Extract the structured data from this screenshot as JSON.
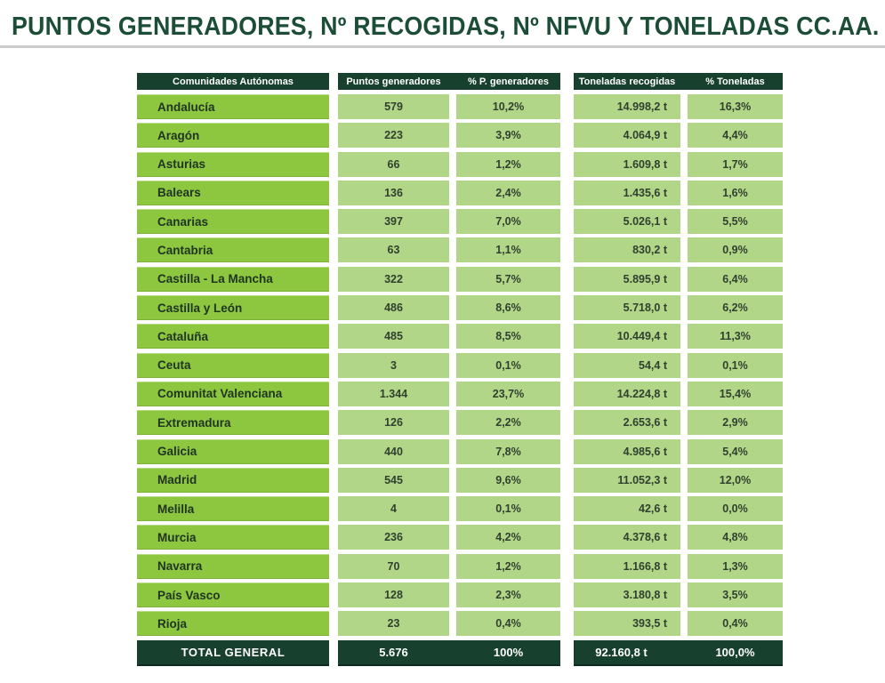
{
  "title": "PUNTOS GENERADORES, Nº RECOGIDAS, Nº NFVU Y TONELADAS CC.AA.",
  "colors": {
    "title_green": "#1b4d37",
    "header_dark_green": "#17402f",
    "community_row_green": "#8dc63f",
    "data_cell_green": "#b1d687",
    "total_row_dark_green": "#17402f",
    "divider_gray": "#cbcbcb"
  },
  "chart_data": {
    "type": "table",
    "title": "PUNTOS GENERADORES, Nº RECOGIDAS, Nº NFVU Y TONELADAS CC.AA.",
    "columns": [
      "Comunidades Autónomas",
      "Puntos generadores",
      "% P. generadores",
      "Toneladas recogidas",
      "% Toneladas"
    ],
    "rows": [
      [
        "Andalucía",
        "579",
        "10,2%",
        "14.998,2 t",
        "16,3%"
      ],
      [
        "Aragón",
        "223",
        "3,9%",
        "4.064,9 t",
        "4,4%"
      ],
      [
        "Asturias",
        "66",
        "1,2%",
        "1.609,8 t",
        "1,7%"
      ],
      [
        "Balears",
        "136",
        "2,4%",
        "1.435,6 t",
        "1,6%"
      ],
      [
        "Canarias",
        "397",
        "7,0%",
        "5.026,1 t",
        "5,5%"
      ],
      [
        "Cantabria",
        "63",
        "1,1%",
        "830,2 t",
        "0,9%"
      ],
      [
        "Castilla - La Mancha",
        "322",
        "5,7%",
        "5.895,9 t",
        "6,4%"
      ],
      [
        "Castilla y León",
        "486",
        "8,6%",
        "5.718,0 t",
        "6,2%"
      ],
      [
        "Cataluña",
        "485",
        "8,5%",
        "10.449,4 t",
        "11,3%"
      ],
      [
        "Ceuta",
        "3",
        "0,1%",
        "54,4 t",
        "0,1%"
      ],
      [
        "Comunitat Valenciana",
        "1.344",
        "23,7%",
        "14.224,8 t",
        "15,4%"
      ],
      [
        "Extremadura",
        "126",
        "2,2%",
        "2.653,6 t",
        "2,9%"
      ],
      [
        "Galicia",
        "440",
        "7,8%",
        "4.985,6 t",
        "5,4%"
      ],
      [
        "Madrid",
        "545",
        "9,6%",
        "11.052,3 t",
        "12,0%"
      ],
      [
        "Melilla",
        "4",
        "0,1%",
        "42,6 t",
        "0,0%"
      ],
      [
        "Murcia",
        "236",
        "4,2%",
        "4.378,6 t",
        "4,8%"
      ],
      [
        "Navarra",
        "70",
        "1,2%",
        "1.166,8 t",
        "1,3%"
      ],
      [
        "País Vasco",
        "128",
        "2,3%",
        "3.180,8 t",
        "3,5%"
      ],
      [
        "Rioja",
        "23",
        "0,4%",
        "393,5 t",
        "0,4%"
      ]
    ],
    "total": [
      "TOTAL GENERAL",
      "5.676",
      "100%",
      "92.160,8 t",
      "100,0%"
    ]
  }
}
